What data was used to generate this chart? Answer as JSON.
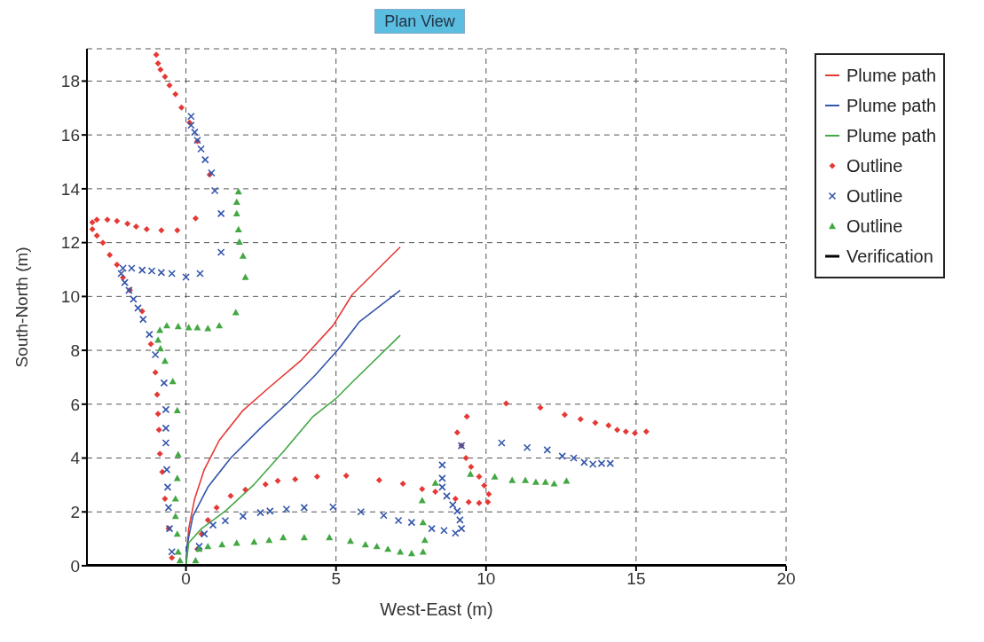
{
  "chart_data": {
    "type": "scatter",
    "title": "Plan View",
    "xlabel": "West-East (m)",
    "ylabel": "South-North (m)",
    "xlim": [
      -3.3,
      20
    ],
    "ylim": [
      0,
      19.2
    ],
    "xticks": [
      0,
      5,
      10,
      15,
      20
    ],
    "yticks": [
      0,
      2,
      4,
      6,
      8,
      10,
      12,
      14,
      16,
      18
    ],
    "grid": true,
    "legend": "right",
    "series": [
      {
        "name": "Plume path",
        "type": "line",
        "color": "#e53935",
        "x": [
          0,
          0.09,
          0.29,
          0.61,
          1.11,
          1.9,
          2.77,
          3.82,
          4.9,
          5.54,
          7.14
        ],
        "values": [
          0,
          1.38,
          2.49,
          3.57,
          4.66,
          5.77,
          6.62,
          7.61,
          8.92,
          10.07,
          11.84
        ]
      },
      {
        "name": "Plume path",
        "type": "line",
        "color": "#3355aa",
        "x": [
          0,
          0.03,
          0.23,
          0.73,
          1.49,
          2.48,
          3.44,
          4.31,
          5.1,
          5.77,
          7.14
        ],
        "values": [
          0,
          0.72,
          1.84,
          2.92,
          4.0,
          5.11,
          6.1,
          7.08,
          8.07,
          9.05,
          10.23
        ]
      },
      {
        "name": "Plume path",
        "type": "line",
        "color": "#43a843",
        "x": [
          0,
          0.09,
          0.52,
          1.31,
          2.27,
          3.24,
          4.23,
          4.99,
          5.57,
          7.14
        ],
        "values": [
          0,
          0.85,
          1.38,
          2.03,
          3.02,
          4.23,
          5.54,
          6.2,
          6.85,
          8.56
        ]
      },
      {
        "name": "Outline",
        "color": "#e53935",
        "marker": "diamond",
        "x": [
          -0.99,
          -0.93,
          -0.85,
          -0.7,
          -0.55,
          -0.35,
          -0.15,
          0.12,
          0.38,
          0.79,
          0.32,
          -0.29,
          -0.82,
          -1.31,
          -1.66,
          -1.95,
          -2.3,
          -2.62,
          -2.97,
          -3.12,
          -3.12,
          -2.97,
          -2.77,
          -2.54,
          -2.3,
          -2.1,
          -1.87,
          -1.46,
          -1.17,
          -1.02,
          -0.96,
          -0.93,
          -0.9,
          -0.87,
          -0.79,
          -0.7,
          -0.58,
          -0.47,
          0.38,
          0.52,
          0.73,
          1.02,
          1.49,
          1.98,
          2.65,
          3.06,
          3.64,
          4.37,
          5.34,
          6.44,
          7.23,
          7.87,
          8.31,
          8.98,
          9.42,
          9.77,
          10.06,
          10.09,
          9.94,
          9.77,
          9.5,
          9.33,
          9.18,
          9.04,
          9.36,
          10.67,
          11.81,
          12.62,
          13.15,
          13.64,
          14.08,
          14.37,
          14.66,
          14.96,
          15.34
        ],
        "values": [
          18.98,
          18.66,
          18.43,
          18.16,
          17.84,
          17.51,
          17.02,
          16.46,
          15.77,
          14.52,
          12.9,
          12.46,
          12.46,
          12.5,
          12.6,
          12.7,
          12.8,
          12.85,
          12.85,
          12.75,
          12.5,
          12.26,
          12.0,
          11.54,
          11.18,
          10.7,
          10.23,
          9.45,
          8.23,
          7.18,
          6.36,
          5.64,
          5.05,
          4.16,
          3.48,
          2.49,
          1.38,
          0.3,
          0.62,
          1.18,
          1.7,
          2.16,
          2.59,
          2.82,
          3.02,
          3.15,
          3.21,
          3.31,
          3.34,
          3.18,
          3.05,
          2.85,
          2.75,
          2.49,
          2.36,
          2.33,
          2.36,
          2.66,
          2.98,
          3.31,
          3.67,
          4.0,
          4.46,
          4.95,
          5.54,
          6.03,
          5.87,
          5.61,
          5.44,
          5.31,
          5.21,
          5.05,
          4.98,
          4.92,
          4.98
        ]
      },
      {
        "name": "Outline",
        "color": "#3355aa",
        "marker": "cross",
        "x": [
          0.17,
          0.17,
          0.29,
          0.38,
          0.5,
          0.64,
          0.85,
          0.96,
          1.17,
          1.17,
          0.47,
          0,
          -0.47,
          -0.82,
          -1.14,
          -1.46,
          -1.81,
          -2.1,
          -2.16,
          -2.04,
          -1.9,
          -1.75,
          -1.6,
          -1.43,
          -1.22,
          -1.02,
          -0.73,
          -0.67,
          -0.67,
          -0.67,
          -0.64,
          -0.61,
          -0.58,
          -0.55,
          -0.47,
          0.44,
          0.61,
          0.9,
          1.31,
          1.9,
          2.48,
          2.8,
          3.35,
          3.94,
          4.9,
          5.83,
          6.59,
          7.08,
          7.52,
          8.19,
          8.6,
          8.98,
          9.18,
          9.13,
          9.04,
          8.89,
          8.69,
          8.54,
          8.54,
          8.54,
          9.18,
          10.52,
          11.37,
          12.04,
          12.54,
          12.92,
          13.27,
          13.56,
          13.85,
          14.14
        ],
        "values": [
          16.69,
          16.36,
          16.1,
          15.8,
          15.48,
          15.08,
          14.59,
          13.93,
          13.08,
          11.64,
          10.85,
          10.72,
          10.85,
          10.89,
          10.95,
          10.98,
          11.05,
          11.05,
          10.85,
          10.52,
          10.23,
          9.9,
          9.57,
          9.15,
          8.59,
          7.84,
          6.79,
          5.8,
          5.11,
          4.56,
          3.57,
          2.92,
          2.16,
          1.38,
          0.52,
          0.72,
          1.18,
          1.51,
          1.67,
          1.84,
          1.97,
          2.03,
          2.1,
          2.16,
          2.18,
          2.0,
          1.87,
          1.68,
          1.61,
          1.38,
          1.31,
          1.21,
          1.38,
          1.7,
          2.03,
          2.26,
          2.59,
          2.92,
          3.25,
          3.74,
          4.46,
          4.56,
          4.39,
          4.3,
          4.07,
          4.0,
          3.84,
          3.77,
          3.8,
          3.8
        ]
      },
      {
        "name": "Outline",
        "color": "#43a843",
        "marker": "triangle",
        "x": [
          1.75,
          1.69,
          1.69,
          1.75,
          1.78,
          1.9,
          1.98,
          1.66,
          1.11,
          0.73,
          0.38,
          0.09,
          -0.26,
          -0.64,
          -0.87,
          -0.93,
          -0.85,
          -0.7,
          -0.44,
          -0.29,
          -0.26,
          -0.29,
          -0.35,
          -0.35,
          -0.29,
          -0.26,
          -0.2,
          0.32,
          0.44,
          0.73,
          1.2,
          1.69,
          2.27,
          2.77,
          3.24,
          3.94,
          4.78,
          5.48,
          5.98,
          6.36,
          6.73,
          7.14,
          7.52,
          7.9,
          7.96,
          7.9,
          7.87,
          8.31,
          9.48,
          10.29,
          10.87,
          11.31,
          11.66,
          11.98,
          12.27,
          12.68
        ],
        "values": [
          13.9,
          13.51,
          13.08,
          12.49,
          12.03,
          11.51,
          10.72,
          9.41,
          8.92,
          8.82,
          8.85,
          8.85,
          8.89,
          8.92,
          8.75,
          8.39,
          8.07,
          7.61,
          6.85,
          5.77,
          4.13,
          3.25,
          2.49,
          1.84,
          1.18,
          0.52,
          0.2,
          0.2,
          0.62,
          0.72,
          0.79,
          0.85,
          0.89,
          0.95,
          1.05,
          1.05,
          1.05,
          0.92,
          0.79,
          0.72,
          0.62,
          0.52,
          0.46,
          0.52,
          0.95,
          1.61,
          2.43,
          3.08,
          3.41,
          3.31,
          3.18,
          3.18,
          3.11,
          3.11,
          3.05,
          3.15
        ]
      },
      {
        "name": "Verification",
        "type": "line",
        "color": "#000000",
        "x": [
          -3.3,
          20
        ],
        "values": [
          0,
          0
        ]
      }
    ]
  }
}
